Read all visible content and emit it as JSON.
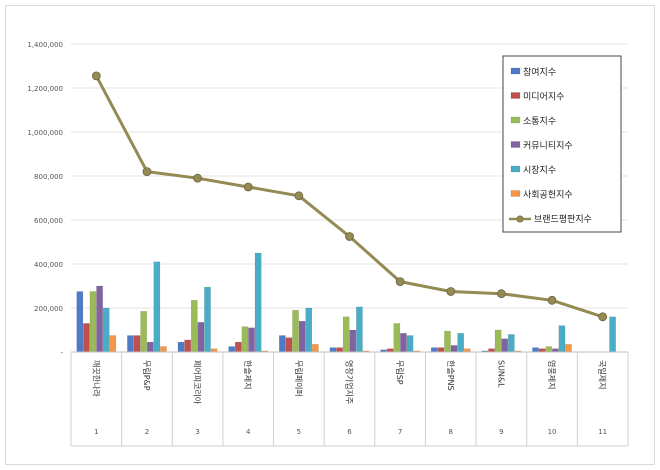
{
  "chart_data": {
    "type": "bar",
    "categories": [
      "깨끗한나라",
      "무림P&P",
      "페어피코리아",
      "한솔제지",
      "무림페이퍼",
      "영창기업지주",
      "무림SP",
      "한솔PNS",
      "SUN&L",
      "영풍제지",
      "국일제지"
    ],
    "index_labels": [
      "1",
      "2",
      "3",
      "4",
      "5",
      "6",
      "7",
      "8",
      "9",
      "10",
      "11"
    ],
    "ylim": [
      0,
      1400000
    ],
    "yticks": [
      0,
      200000,
      400000,
      600000,
      800000,
      1000000,
      1200000,
      1400000
    ],
    "ytick_labels": [
      "-",
      "200,000",
      "400,000",
      "600,000",
      "800,000",
      "1,000,000",
      "1,200,000",
      "1,400,000"
    ],
    "grid": true,
    "legend_position": "top-right",
    "series": [
      {
        "name": "참여지수",
        "color": "#4f7ac7",
        "kind": "bar",
        "values": [
          275000,
          75000,
          45000,
          25000,
          75000,
          20000,
          10000,
          20000,
          5000,
          20000,
          0
        ]
      },
      {
        "name": "미디어지수",
        "color": "#c0504d",
        "kind": "bar",
        "values": [
          130000,
          75000,
          55000,
          45000,
          65000,
          20000,
          15000,
          20000,
          15000,
          15000,
          0
        ]
      },
      {
        "name": "소통지수",
        "color": "#9bbb59",
        "kind": "bar",
        "values": [
          275000,
          185000,
          235000,
          115000,
          190000,
          160000,
          130000,
          95000,
          100000,
          25000,
          0
        ]
      },
      {
        "name": "커뮤니티지수",
        "color": "#8064a2",
        "kind": "bar",
        "values": [
          300000,
          45000,
          135000,
          110000,
          140000,
          100000,
          85000,
          30000,
          60000,
          15000,
          0
        ]
      },
      {
        "name": "시장지수",
        "color": "#4bacc6",
        "kind": "bar",
        "values": [
          200000,
          410000,
          295000,
          450000,
          200000,
          205000,
          75000,
          85000,
          80000,
          120000,
          160000
        ]
      },
      {
        "name": "사회공헌지수",
        "color": "#f79646",
        "kind": "bar",
        "values": [
          75000,
          25000,
          15000,
          5000,
          35000,
          5000,
          5000,
          15000,
          5000,
          35000,
          0
        ]
      },
      {
        "name": "브랜드평판지수",
        "color": "#948a54",
        "kind": "line",
        "values": [
          1255000,
          820000,
          790000,
          750000,
          710000,
          525000,
          320000,
          275000,
          265000,
          235000,
          160000
        ]
      }
    ]
  }
}
